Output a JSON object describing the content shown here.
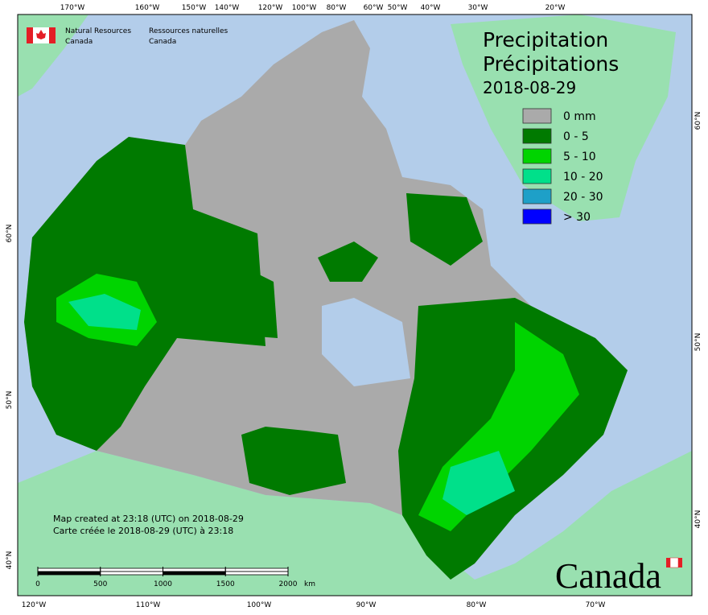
{
  "header": {
    "dept_en": [
      "Natural Resources",
      "Canada"
    ],
    "dept_fr": [
      "Ressources naturelles",
      "Canada"
    ]
  },
  "title": {
    "en": "Precipitation",
    "fr": "Précipitations",
    "date": "2018-08-29"
  },
  "legend": [
    {
      "label": "0 mm",
      "color": "#aaaaaa"
    },
    {
      "label": "0 - 5",
      "color": "#007a00"
    },
    {
      "label": "5 - 10",
      "color": "#00d400"
    },
    {
      "label": "10 - 20",
      "color": "#00e08a"
    },
    {
      "label": "20 - 30",
      "color": "#1ea0c8"
    },
    {
      "label": "> 30",
      "color": "#0000ff"
    }
  ],
  "notes": [
    "Map created at 23:18 (UTC) on 2018-08-29",
    "Carte créée le 2018-08-29 (UTC) à 23:18"
  ],
  "scale_bar": {
    "ticks": [
      0,
      500,
      1000,
      1500,
      2000
    ],
    "unit": "km"
  },
  "graticule": {
    "top": [
      "170°W",
      "160°W",
      "150°W",
      "140°W",
      "120°W",
      "100°W",
      "80°W",
      "60°W",
      "50°W",
      "40°W",
      "30°W",
      "20°W"
    ],
    "bottom": [
      "120°W",
      "110°W",
      "100°W",
      "90°W",
      "80°W",
      "70°W"
    ],
    "left": [
      "60°N",
      "50°N",
      "40°N"
    ],
    "right": [
      "60°N",
      "50°N",
      "40°N"
    ]
  },
  "wordmark": "Canada"
}
